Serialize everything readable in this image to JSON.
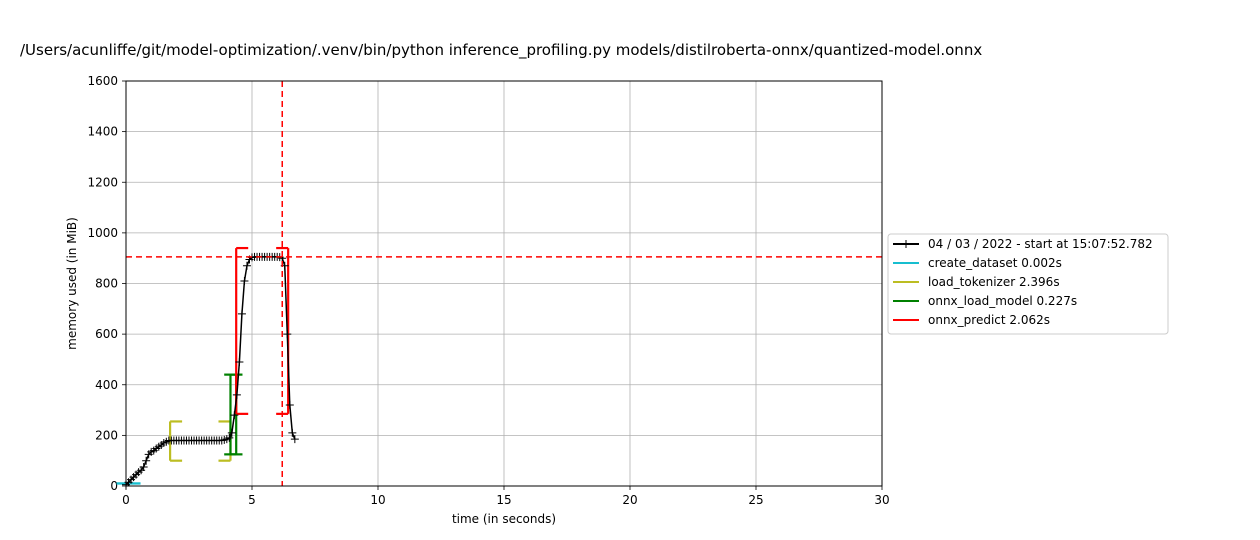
{
  "chart_data": {
    "type": "line",
    "title": "/Users/acunliffe/git/model-optimization/.venv/bin/python inference_profiling.py models/distilroberta-onnx/quantized-model.onnx",
    "xlabel": "time (in seconds)",
    "ylabel": "memory used (in MiB)",
    "xlim": [
      0,
      30
    ],
    "ylim": [
      0,
      1600
    ],
    "xticks": [
      0,
      5,
      10,
      15,
      20,
      25,
      30
    ],
    "yticks": [
      0,
      200,
      400,
      600,
      800,
      1000,
      1200,
      1400,
      1600
    ],
    "grid": true,
    "legend_position": "outside-right",
    "series": [
      {
        "name": "04 / 03 / 2022 - start at 15:07:52.782",
        "color": "#000000",
        "marker": "+",
        "x": [
          0.0,
          0.1,
          0.2,
          0.3,
          0.4,
          0.5,
          0.6,
          0.7,
          0.8,
          0.9,
          1.0,
          1.1,
          1.2,
          1.3,
          1.4,
          1.5,
          1.6,
          1.7,
          1.8,
          1.9,
          2.0,
          2.1,
          2.2,
          2.3,
          2.4,
          2.5,
          2.6,
          2.7,
          2.8,
          2.9,
          3.0,
          3.1,
          3.2,
          3.3,
          3.4,
          3.5,
          3.6,
          3.7,
          3.8,
          3.9,
          4.0,
          4.1,
          4.2,
          4.3,
          4.4,
          4.5,
          4.6,
          4.7,
          4.8,
          4.9,
          5.0,
          5.1,
          5.2,
          5.3,
          5.4,
          5.5,
          5.6,
          5.7,
          5.8,
          5.9,
          6.0,
          6.1,
          6.2,
          6.3,
          6.4,
          6.5,
          6.6,
          6.7
        ],
        "y": [
          5,
          15,
          25,
          35,
          45,
          55,
          62,
          75,
          100,
          125,
          135,
          140,
          148,
          155,
          162,
          170,
          175,
          180,
          180,
          180,
          180,
          180,
          180,
          180,
          180,
          180,
          180,
          180,
          180,
          180,
          180,
          180,
          180,
          180,
          180,
          180,
          180,
          180,
          180,
          182,
          185,
          190,
          210,
          280,
          360,
          490,
          680,
          810,
          870,
          895,
          903,
          905,
          905,
          905,
          905,
          905,
          905,
          905,
          905,
          905,
          905,
          904,
          900,
          870,
          600,
          320,
          210,
          185
        ]
      }
    ],
    "functions": [
      {
        "name": "create_dataset 0.002s",
        "color": "#17becf",
        "start": 0.1,
        "end": 0.102,
        "mem_low": 10,
        "mem_high": 10
      },
      {
        "name": "load_tokenizer 2.396s",
        "color": "#bcbd22",
        "start": 1.75,
        "end": 4.146,
        "mem_low": 100,
        "mem_high": 255
      },
      {
        "name": "onnx_load_model 0.227s",
        "color": "#008000",
        "start": 4.146,
        "end": 4.373,
        "mem_low": 125,
        "mem_high": 440
      },
      {
        "name": "onnx_predict 2.062s",
        "color": "#ff0000",
        "start": 4.373,
        "end": 6.435,
        "mem_low": 285,
        "mem_high": 940
      }
    ],
    "max_memory_line": {
      "x": 6.2,
      "y": 905,
      "color": "#ff0000",
      "style": "dashed"
    }
  }
}
